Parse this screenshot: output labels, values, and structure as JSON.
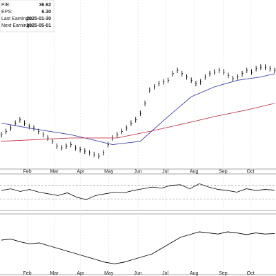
{
  "chart_data": {
    "type": "stock",
    "info": [
      {
        "label": "P/E:",
        "value": "36.92"
      },
      {
        "label": "EPS:",
        "value": "6.30"
      },
      {
        "label": "Last Earnings:",
        "value": "2025-01-30"
      },
      {
        "label": "Next Earnings:",
        "value": "2025-05-01"
      }
    ],
    "xlim": [
      0,
      59
    ],
    "xticks": [
      {
        "value": 5.6,
        "label": "Feb"
      },
      {
        "value": 11.4,
        "label": "Mar"
      },
      {
        "value": 17.1,
        "label": "Apr"
      },
      {
        "value": 23.2,
        "label": "May"
      },
      {
        "value": 29.5,
        "label": "Jun"
      },
      {
        "value": 35.4,
        "label": "Jul"
      },
      {
        "value": 41.6,
        "label": "Aug"
      },
      {
        "value": 47.9,
        "label": "Sep"
      },
      {
        "value": 53.8,
        "label": "Oct"
      }
    ],
    "price": {
      "ylim": [
        0,
        100
      ],
      "color": "#000000",
      "values": [
        20,
        22,
        24,
        27,
        29,
        27,
        25,
        24,
        22,
        20,
        18,
        16,
        13,
        12,
        13,
        14,
        12,
        11,
        10,
        9,
        8,
        7,
        9,
        14,
        18,
        20,
        22,
        24,
        27,
        29,
        33,
        39,
        47,
        49,
        51,
        52,
        53,
        57,
        59,
        57,
        55,
        53,
        51,
        52,
        55,
        57,
        58,
        59,
        58,
        56,
        54,
        55,
        57,
        59,
        58,
        60,
        61,
        61,
        60,
        59
      ],
      "averages": [
        {
          "color": "#3b3fa8",
          "x": [
            0,
            6,
            15,
            24,
            30,
            36,
            41,
            46,
            51,
            56,
            59
          ],
          "values": [
            27,
            24,
            20,
            14,
            16,
            31,
            43,
            49,
            53,
            55,
            57
          ]
        },
        {
          "color": "#c0394b",
          "x": [
            0,
            15,
            25,
            32,
            40,
            46,
            53,
            59
          ],
          "values": [
            16,
            18,
            18,
            22,
            27,
            31,
            35,
            39
          ]
        }
      ]
    },
    "oscillator": {
      "ylim": [
        0,
        100
      ],
      "yticks": [
        30,
        70
      ],
      "color": "#000000",
      "values": [
        55,
        60,
        52,
        58,
        50,
        45,
        40,
        48,
        35,
        28,
        40,
        45,
        50,
        48,
        55,
        60,
        65,
        62,
        70,
        72,
        60,
        75,
        65,
        58,
        55,
        50,
        60,
        55,
        58,
        56
      ]
    },
    "lower": {
      "ylim": [
        0,
        100
      ],
      "color": "#000000",
      "values": [
        55,
        57,
        52,
        48,
        50,
        45,
        40,
        35,
        30,
        25,
        20,
        15,
        12,
        15,
        20,
        25,
        30,
        40,
        50,
        60,
        65,
        70,
        68,
        66,
        70,
        68,
        65,
        68,
        66,
        67
      ]
    }
  }
}
